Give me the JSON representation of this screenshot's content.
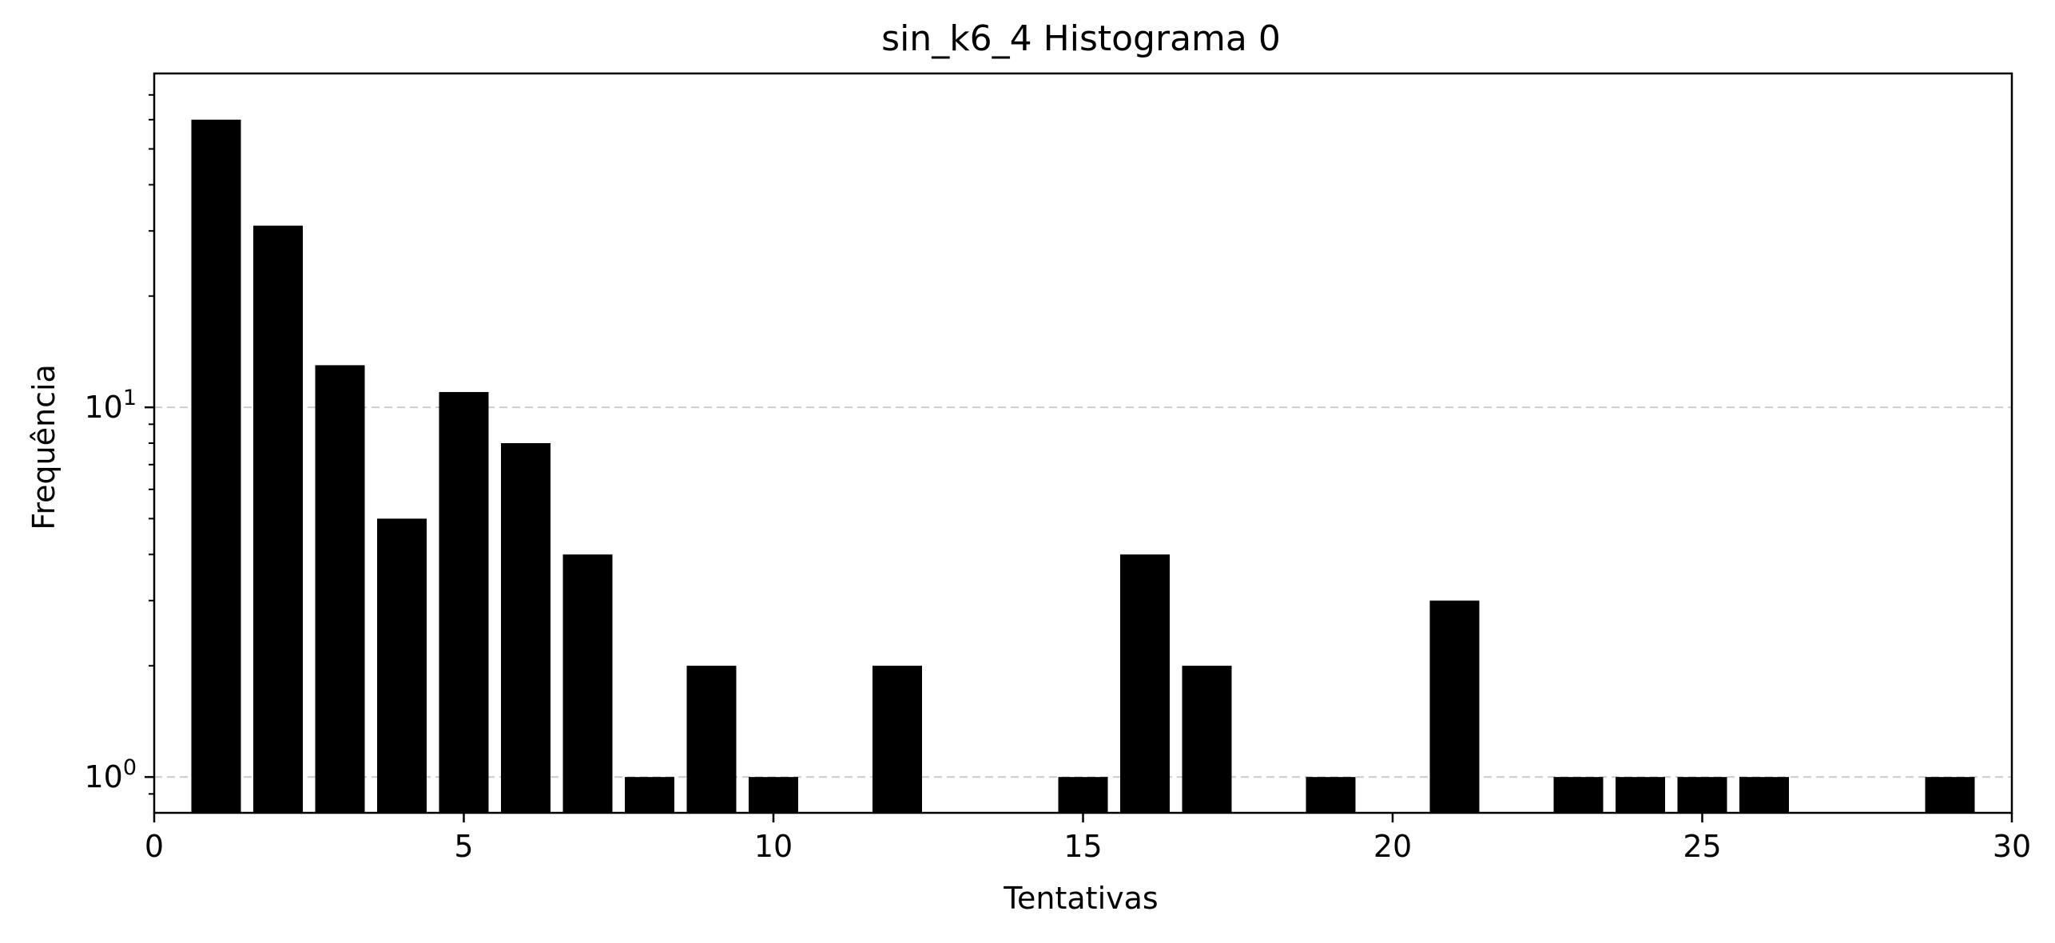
{
  "chart_data": {
    "type": "bar",
    "title": "sin_k6_4 Histograma 0",
    "xlabel": "Tentativas",
    "ylabel": "Frequência",
    "xlim": [
      0,
      30
    ],
    "ylim": [
      0.8,
      80
    ],
    "y_scale": "log",
    "x_ticks": [
      0,
      5,
      10,
      15,
      20,
      25,
      30
    ],
    "y_major_ticks": [
      {
        "value": 1,
        "base": "10",
        "exp": "0"
      },
      {
        "value": 10,
        "base": "10",
        "exp": "1"
      }
    ],
    "grid": "y-major-dashed",
    "bar_color": "#000000",
    "grid_color": "#cccccc",
    "bars": [
      {
        "x": 1,
        "y": 60
      },
      {
        "x": 2,
        "y": 31
      },
      {
        "x": 3,
        "y": 13
      },
      {
        "x": 4,
        "y": 5
      },
      {
        "x": 5,
        "y": 11
      },
      {
        "x": 6,
        "y": 8
      },
      {
        "x": 7,
        "y": 4
      },
      {
        "x": 8,
        "y": 1
      },
      {
        "x": 9,
        "y": 2
      },
      {
        "x": 10,
        "y": 1
      },
      {
        "x": 12,
        "y": 2
      },
      {
        "x": 15,
        "y": 1
      },
      {
        "x": 16,
        "y": 4
      },
      {
        "x": 17,
        "y": 2
      },
      {
        "x": 19,
        "y": 1
      },
      {
        "x": 21,
        "y": 3
      },
      {
        "x": 23,
        "y": 1
      },
      {
        "x": 24,
        "y": 1
      },
      {
        "x": 25,
        "y": 1
      },
      {
        "x": 26,
        "y": 1
      },
      {
        "x": 29,
        "y": 1
      }
    ]
  }
}
